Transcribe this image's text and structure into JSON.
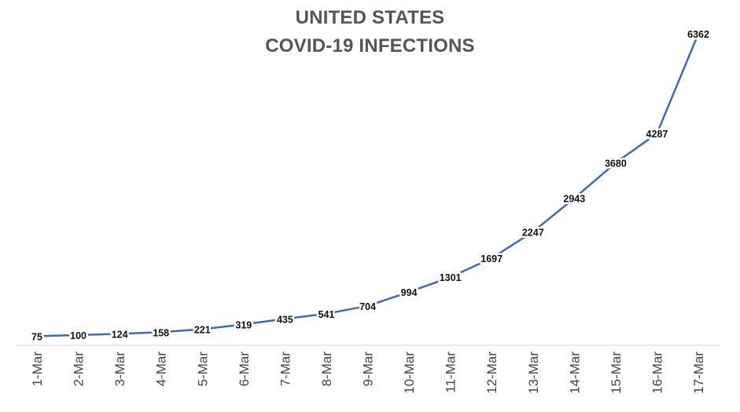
{
  "chart_data": {
    "type": "line",
    "title_lines": [
      "UNITED STATES",
      "COVID-19 INFECTIONS"
    ],
    "categories": [
      "1-Mar",
      "2-Mar",
      "3-Mar",
      "4-Mar",
      "5-Mar",
      "6-Mar",
      "7-Mar",
      "8-Mar",
      "9-Mar",
      "10-Mar",
      "11-Mar",
      "12-Mar",
      "13-Mar",
      "14-Mar",
      "15-Mar",
      "16-Mar",
      "17-Mar"
    ],
    "values": [
      75,
      100,
      124,
      158,
      221,
      319,
      435,
      541,
      704,
      994,
      1301,
      1697,
      2247,
      2943,
      3680,
      4287,
      6362
    ],
    "xlabel": "",
    "ylabel": "",
    "grid": false,
    "legend": "none",
    "line_color": "#3E6BB0"
  }
}
